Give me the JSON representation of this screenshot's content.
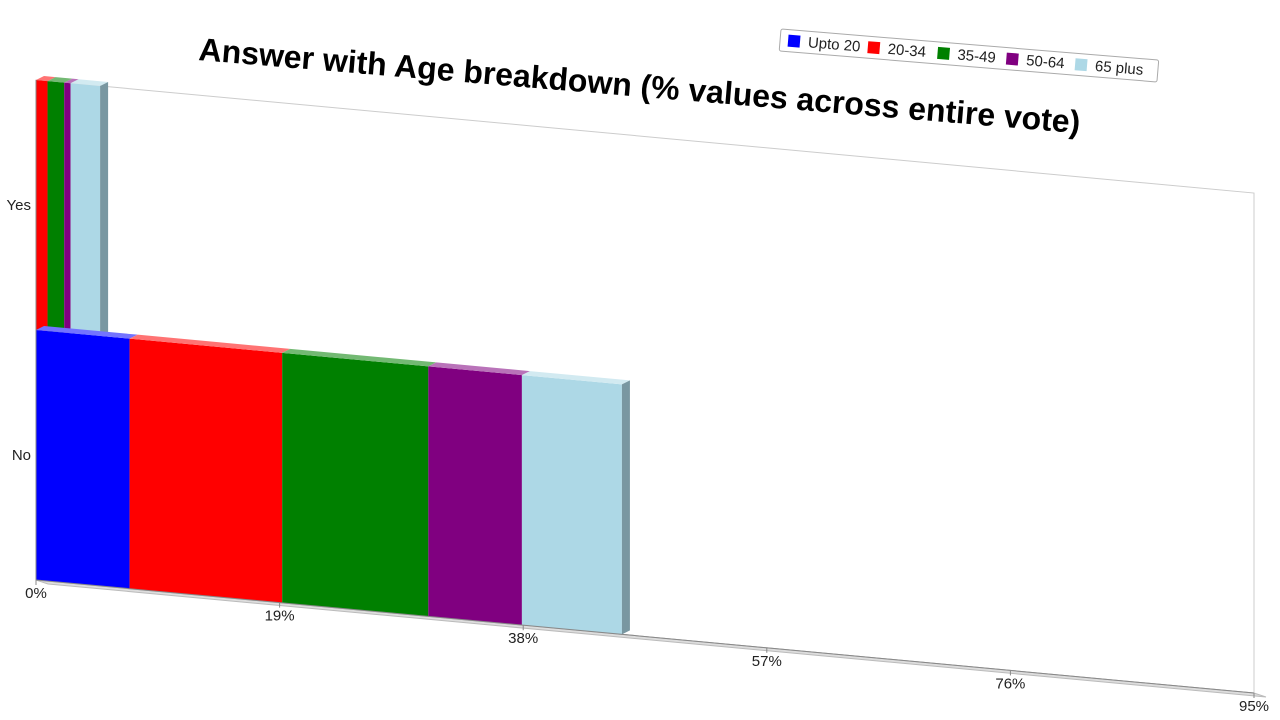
{
  "chart_data": {
    "type": "bar",
    "orientation": "horizontal",
    "stacked": true,
    "three_d": true,
    "title": "Answer with Age breakdown (% values across entire vote)",
    "categories": [
      "Yes",
      "No"
    ],
    "series": [
      {
        "name": "Upto 20",
        "color": "#0000ff",
        "values": [
          0.0,
          7.3
        ]
      },
      {
        "name": "20-34",
        "color": "#ff0000",
        "values": [
          0.9,
          11.9
        ]
      },
      {
        "name": "35-49",
        "color": "#008000",
        "values": [
          1.3,
          11.4
        ]
      },
      {
        "name": "50-64",
        "color": "#800080",
        "values": [
          0.5,
          7.3
        ]
      },
      {
        "name": "65 plus",
        "color": "#add8e6",
        "values": [
          2.3,
          7.8
        ]
      }
    ],
    "xlim": [
      0,
      95
    ],
    "xticks": [
      "0%",
      "19%",
      "38%",
      "57%",
      "76%",
      "95%"
    ],
    "legend_position": "top-right",
    "grid": false
  }
}
